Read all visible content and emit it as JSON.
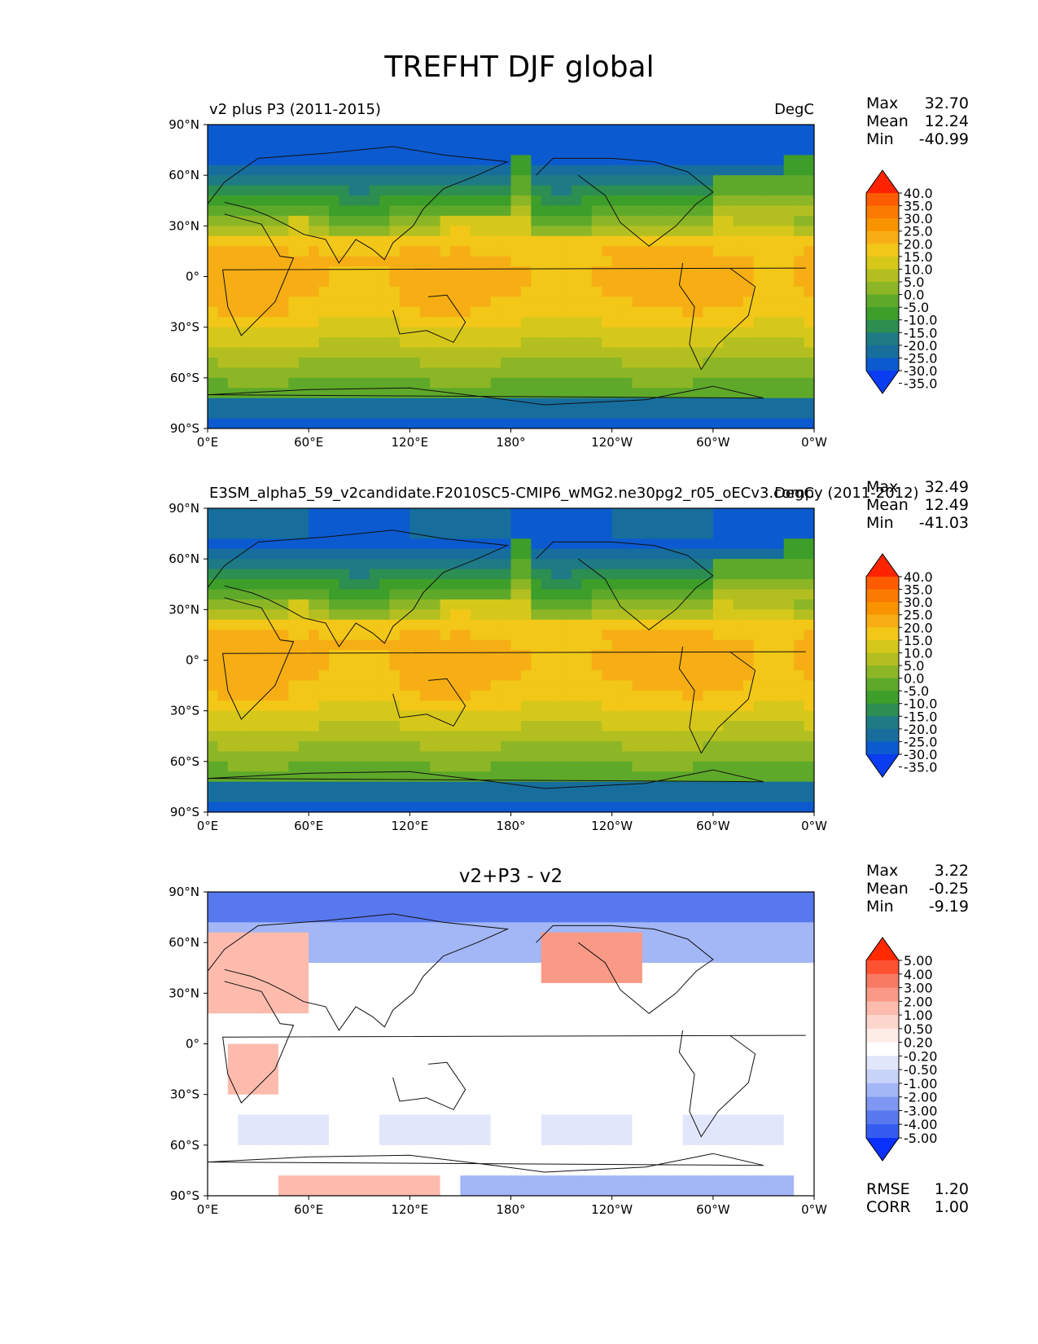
{
  "figure": {
    "title": "TREFHT DJF global"
  },
  "chart_data": [
    {
      "type": "heatmap",
      "panel_title_left": "v2 plus P3 (2011-2015)",
      "panel_title_center": "",
      "panel_title_right": "DegC",
      "field": "test",
      "stats": {
        "labels": [
          "Max",
          "Mean",
          "Min"
        ],
        "values": [
          "32.70",
          "12.24",
          "-40.99"
        ]
      },
      "colorbar": {
        "levels": [
          "40.0",
          "35.0",
          "30.0",
          "25.0",
          "20.0",
          "15.0",
          "10.0",
          "5.0",
          "0.0",
          "-5.0",
          "-10.0",
          "-15.0",
          "-20.0",
          "-25.0",
          "-30.0",
          "-35.0"
        ],
        "colors": [
          "#ff2400",
          "#fd5b00",
          "#fb7a00",
          "#f99300",
          "#f7ae14",
          "#f2c718",
          "#d6c81a",
          "#b3bf20",
          "#8cb626",
          "#5ea92a",
          "#3d9e2a",
          "#2c8e50",
          "#1e7a85",
          "#176e9c",
          "#0c5ad0",
          "#0a3cf0"
        ]
      },
      "xticks": [
        "0°E",
        "60°E",
        "120°E",
        "180°",
        "120°W",
        "60°W",
        "0°W"
      ],
      "yticks": [
        "90°N",
        "60°N",
        "30°N",
        "0°",
        "30°S",
        "60°S",
        "90°S"
      ]
    },
    {
      "type": "heatmap",
      "panel_title_left": "E3SM_alpha5_59_v2candidate.F2010SC5-CMIP6_wMG2.ne30pg2_r05_oECv3.compy (2011-2012)",
      "panel_title_center": "",
      "panel_title_right": "DegC",
      "field": "ref",
      "stats": {
        "labels": [
          "Max",
          "Mean",
          "Min"
        ],
        "values": [
          "32.49",
          "12.49",
          "-41.03"
        ]
      },
      "colorbar": {
        "levels": [
          "40.0",
          "35.0",
          "30.0",
          "25.0",
          "20.0",
          "15.0",
          "10.0",
          "5.0",
          "0.0",
          "-5.0",
          "-10.0",
          "-15.0",
          "-20.0",
          "-25.0",
          "-30.0",
          "-35.0"
        ],
        "colors": [
          "#ff2400",
          "#fd5b00",
          "#fb7a00",
          "#f99300",
          "#f7ae14",
          "#f2c718",
          "#d6c81a",
          "#b3bf20",
          "#8cb626",
          "#5ea92a",
          "#3d9e2a",
          "#2c8e50",
          "#1e7a85",
          "#176e9c",
          "#0c5ad0",
          "#0a3cf0"
        ]
      },
      "xticks": [
        "0°E",
        "60°E",
        "120°E",
        "180°",
        "120°W",
        "60°W",
        "0°W"
      ],
      "yticks": [
        "90°N",
        "60°N",
        "30°N",
        "0°",
        "30°S",
        "60°S",
        "90°S"
      ]
    },
    {
      "type": "heatmap",
      "panel_title_left": "",
      "panel_title_center": "v2+P3 - v2",
      "panel_title_right": "",
      "field": "diff",
      "stats": {
        "labels": [
          "Max",
          "Mean",
          "Min"
        ],
        "values": [
          "3.22",
          "-0.25",
          "-9.19"
        ]
      },
      "extra_stats": {
        "labels": [
          "RMSE",
          "CORR"
        ],
        "values": [
          "1.20",
          "1.00"
        ]
      },
      "colorbar": {
        "levels": [
          "5.00",
          "4.00",
          "3.00",
          "2.00",
          "1.00",
          "0.50",
          "0.20",
          "-0.20",
          "-0.50",
          "-1.00",
          "-2.00",
          "-3.00",
          "-4.00",
          "-5.00"
        ],
        "colors": [
          "#ff2a00",
          "#ff5232",
          "#f87a63",
          "#fa9a86",
          "#fcbbad",
          "#fdd6cd",
          "#feece7",
          "#ffffff",
          "#e1e6fb",
          "#c8d3fa",
          "#a3b6f6",
          "#7d97f2",
          "#5878ee",
          "#355cf1",
          "#0a30fb"
        ]
      },
      "xticks": [
        "0°E",
        "60°E",
        "120°E",
        "180°",
        "120°W",
        "60°W",
        "0°W"
      ],
      "yticks": [
        "90°N",
        "60°N",
        "30°N",
        "0°",
        "30°S",
        "60°S",
        "90°S"
      ]
    }
  ]
}
